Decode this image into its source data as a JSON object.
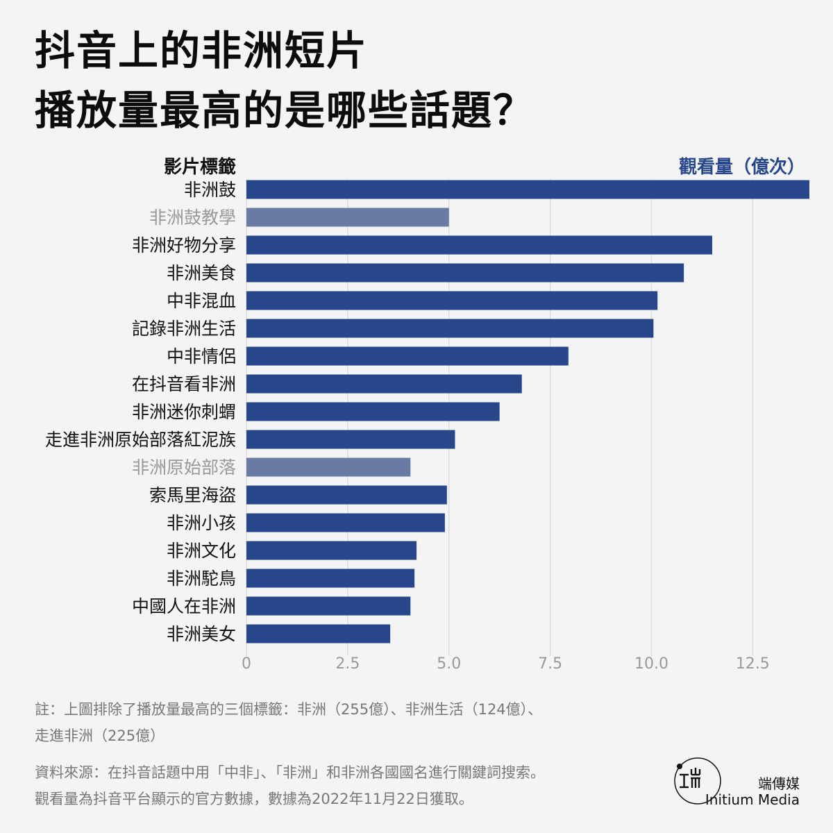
{
  "header": {
    "title_line1": "抖音上的非洲短片",
    "title_line2": "播放量最高的是哪些話題？"
  },
  "chart_data": {
    "type": "bar",
    "orientation": "horizontal",
    "category_axis_label": "影片標籤",
    "value_axis_label": "觀看量（億次）",
    "categories": [
      "非洲鼓",
      "非洲鼓教學",
      "非洲好物分享",
      "非洲美食",
      "中非混血",
      "記錄非洲生活",
      "中非情侶",
      "在抖音看非洲",
      "非洲迷你刺蝟",
      "走進非洲原始部落紅泥族",
      "非洲原始部落",
      "索馬里海盜",
      "非洲小孩",
      "非洲文化",
      "非洲駝鳥",
      "中國人在非洲",
      "非洲美女"
    ],
    "values": [
      13.9,
      5.0,
      11.5,
      10.8,
      10.15,
      10.05,
      7.95,
      6.8,
      6.25,
      5.15,
      4.05,
      4.95,
      4.9,
      4.2,
      4.15,
      4.05,
      3.55
    ],
    "highlight_muted": [
      false,
      true,
      false,
      false,
      false,
      false,
      false,
      false,
      false,
      false,
      true,
      false,
      false,
      false,
      false,
      false,
      false
    ],
    "xlim": [
      0,
      13.9
    ],
    "xticks": [
      "0",
      "2.5",
      "5.0",
      "7.5",
      "10.0",
      "12.5"
    ],
    "xtick_values": [
      0,
      2.5,
      5.0,
      7.5,
      10.0,
      12.5
    ],
    "grid": true,
    "colors": {
      "bar": "#27478a",
      "bar_muted": "#6a7ba3",
      "label": "#111111",
      "label_muted": "#999999",
      "grid": "#d8d8d8",
      "tick": "#999999"
    }
  },
  "notes": {
    "note_line1": "註：上圖排除了播放量最高的三個標籤：非洲（255億）、非洲生活（124億）、",
    "note_line2": "走進非洲（225億）",
    "source_line1": "資料來源：在抖音話題中用「中非」、「非洲」和非洲各國國名進行關鍵詞搜索。",
    "source_line2": "觀看量為抖音平台顯示的官方數據，數據為2022年11月22日獲取。"
  },
  "brand": {
    "name_zh": "端傳媒",
    "name_en": "Initium Media",
    "logo_icon": "initium-logo-icon"
  }
}
